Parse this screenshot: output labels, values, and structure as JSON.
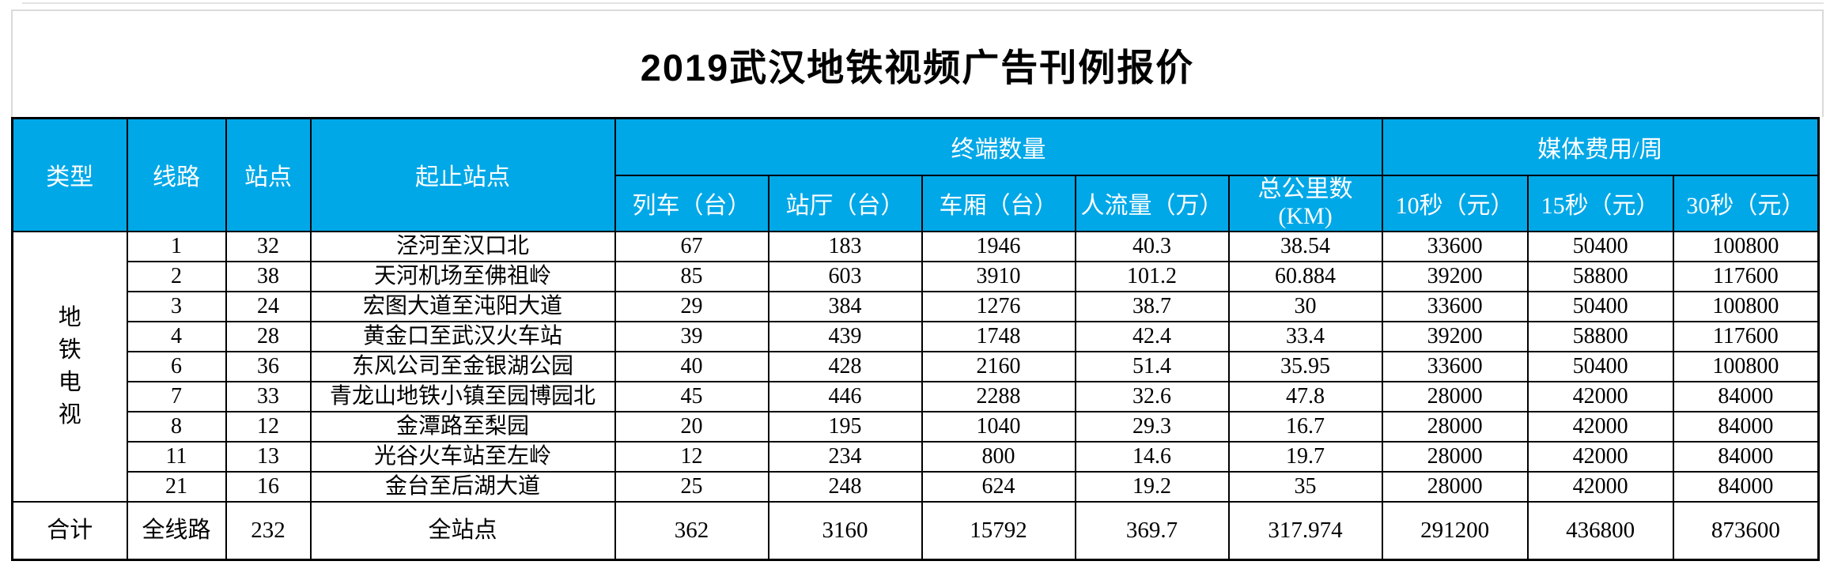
{
  "title": "2019武汉地铁视频广告刊例报价",
  "colors": {
    "header_bg": "#00A8E8",
    "header_text": "#ffffff",
    "border": "#000000"
  },
  "table": {
    "header": {
      "col_type": "类型",
      "col_line": "线路",
      "col_stations": "站点",
      "col_route": "起止站点",
      "group_terminals": "终端数量",
      "group_fees": "媒体费用/周",
      "sub_train": "列车（台）",
      "sub_hall": "站厅（台）",
      "sub_carriage": "车厢（台）",
      "sub_traffic": "人流量（万）",
      "sub_km_line1": "总公里数",
      "sub_km_line2": "(KM)",
      "sub_10s": "10秒（元）",
      "sub_15s": "15秒（元）",
      "sub_30s": "30秒（元）"
    },
    "category_label": "地铁电视",
    "rows": [
      {
        "line": "1",
        "stations": "32",
        "route": "泾河至汉口北",
        "train": "67",
        "hall": "183",
        "carriage": "1946",
        "traffic": "40.3",
        "km": "38.54",
        "s10": "33600",
        "s15": "50400",
        "s30": "100800"
      },
      {
        "line": "2",
        "stations": "38",
        "route": "天河机场至佛祖岭",
        "train": "85",
        "hall": "603",
        "carriage": "3910",
        "traffic": "101.2",
        "km": "60.884",
        "s10": "39200",
        "s15": "58800",
        "s30": "117600"
      },
      {
        "line": "3",
        "stations": "24",
        "route": "宏图大道至沌阳大道",
        "train": "29",
        "hall": "384",
        "carriage": "1276",
        "traffic": "38.7",
        "km": "30",
        "s10": "33600",
        "s15": "50400",
        "s30": "100800"
      },
      {
        "line": "4",
        "stations": "28",
        "route": "黄金口至武汉火车站",
        "train": "39",
        "hall": "439",
        "carriage": "1748",
        "traffic": "42.4",
        "km": "33.4",
        "s10": "39200",
        "s15": "58800",
        "s30": "117600"
      },
      {
        "line": "6",
        "stations": "36",
        "route": "东风公司至金银湖公园",
        "train": "40",
        "hall": "428",
        "carriage": "2160",
        "traffic": "51.4",
        "km": "35.95",
        "s10": "33600",
        "s15": "50400",
        "s30": "100800"
      },
      {
        "line": "7",
        "stations": "33",
        "route": "青龙山地铁小镇至园博园北",
        "train": "45",
        "hall": "446",
        "carriage": "2288",
        "traffic": "32.6",
        "km": "47.8",
        "s10": "28000",
        "s15": "42000",
        "s30": "84000"
      },
      {
        "line": "8",
        "stations": "12",
        "route": "金潭路至梨园",
        "train": "20",
        "hall": "195",
        "carriage": "1040",
        "traffic": "29.3",
        "km": "16.7",
        "s10": "28000",
        "s15": "42000",
        "s30": "84000"
      },
      {
        "line": "11",
        "stations": "13",
        "route": "光谷火车站至左岭",
        "train": "12",
        "hall": "234",
        "carriage": "800",
        "traffic": "14.6",
        "km": "19.7",
        "s10": "28000",
        "s15": "42000",
        "s30": "84000"
      },
      {
        "line": "21",
        "stations": "16",
        "route": "金台至后湖大道",
        "train": "25",
        "hall": "248",
        "carriage": "624",
        "traffic": "19.2",
        "km": "35",
        "s10": "28000",
        "s15": "42000",
        "s30": "84000"
      }
    ],
    "total": {
      "label": "合计",
      "line": "全线路",
      "stations": "232",
      "route": "全站点",
      "train": "362",
      "hall": "3160",
      "carriage": "15792",
      "traffic": "369.7",
      "km": "317.974",
      "s10": "291200",
      "s15": "436800",
      "s30": "873600"
    }
  }
}
